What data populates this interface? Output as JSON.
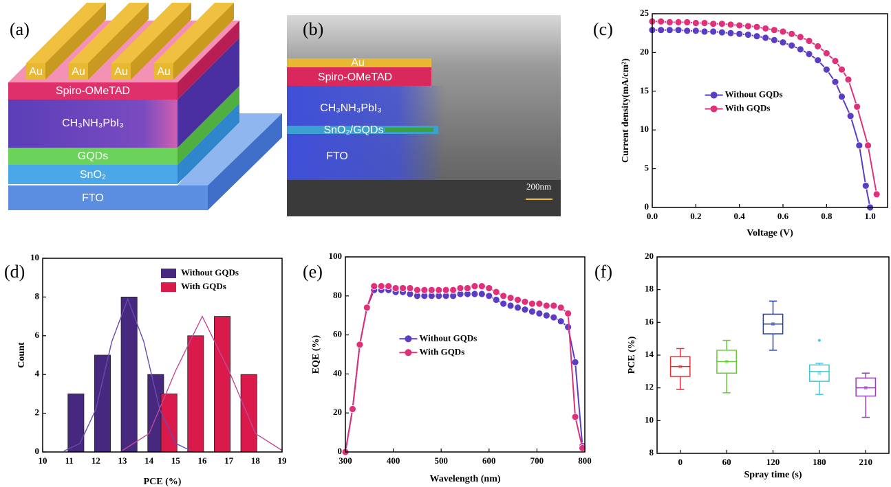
{
  "panel_a": {
    "label": "(a)",
    "electrodes": [
      "Au",
      "Au",
      "Au",
      "Au"
    ],
    "layers": [
      "Spiro-OMeTAD",
      "CH₃NH₃PbI₃",
      "GQDs",
      "SnO₂",
      "FTO"
    ]
  },
  "panel_b": {
    "label": "(b)",
    "layers": [
      "Au",
      "Spiro-OMeTAD",
      "CH₃NH₃PbI₃",
      "SnO₂/GQDs",
      "FTO"
    ],
    "scale_bar": "200nm"
  },
  "chart_data": [
    {
      "type": "line",
      "panel_label": "(c)",
      "xlabel": "Voltage (V)",
      "ylabel": "Current density(mA/cm²)",
      "xlim": [
        0,
        1.08
      ],
      "xticks": [
        {
          "value": 0,
          "label": "0.0"
        },
        0.2,
        0.4,
        0.6,
        0.8,
        {
          "value": 1,
          "label": "1.0"
        }
      ],
      "ylim": [
        0,
        25
      ],
      "yticks": [
        0,
        5,
        10,
        15,
        20,
        25
      ],
      "legend": "center",
      "series": [
        {
          "name": "Without GQDs",
          "color": "#5b3cc4",
          "x": [
            0,
            0.04,
            0.08,
            0.12,
            0.16,
            0.2,
            0.24,
            0.28,
            0.32,
            0.36,
            0.4,
            0.44,
            0.48,
            0.52,
            0.56,
            0.6,
            0.64,
            0.68,
            0.72,
            0.76,
            0.8,
            0.84,
            0.87,
            0.91,
            0.95,
            0.98,
            1.0
          ],
          "values": [
            22.9,
            22.9,
            22.9,
            22.9,
            22.8,
            22.8,
            22.7,
            22.7,
            22.6,
            22.5,
            22.4,
            22.3,
            22.1,
            21.9,
            21.6,
            21.3,
            20.9,
            20.4,
            19.8,
            19.0,
            17.8,
            16.2,
            14.3,
            11.8,
            8.0,
            2.8,
            0
          ]
        },
        {
          "name": "With GQDs",
          "color": "#e0307a",
          "x": [
            0,
            0.04,
            0.08,
            0.12,
            0.16,
            0.2,
            0.24,
            0.28,
            0.32,
            0.36,
            0.4,
            0.44,
            0.48,
            0.52,
            0.56,
            0.6,
            0.64,
            0.68,
            0.72,
            0.76,
            0.8,
            0.84,
            0.87,
            0.9,
            0.94,
            0.99,
            1.03
          ],
          "values": [
            24.0,
            24.0,
            23.9,
            23.9,
            23.9,
            23.8,
            23.8,
            23.7,
            23.7,
            23.6,
            23.5,
            23.4,
            23.3,
            23.1,
            22.9,
            22.7,
            22.4,
            22.0,
            21.5,
            20.8,
            19.9,
            18.9,
            17.8,
            16.5,
            13.0,
            8.0,
            1.7
          ]
        }
      ]
    },
    {
      "type": "bar",
      "panel_label": "(d)",
      "xlabel": "PCE (%)",
      "ylabel": "Count",
      "xlim": [
        10,
        19
      ],
      "xticks": [
        10,
        11,
        12,
        13,
        14,
        15,
        16,
        17,
        18,
        19
      ],
      "ylim": [
        0,
        10
      ],
      "yticks": [
        0,
        2,
        4,
        6,
        8,
        10
      ],
      "legend": "top-right",
      "series": [
        {
          "name": "Without GQDs",
          "color": "#46287f",
          "x": [
            11.25,
            12.25,
            13.25,
            14.25
          ],
          "values": [
            3,
            5,
            8,
            4
          ]
        },
        {
          "name": "With GQDs",
          "color": "#d91a4a",
          "x": [
            14.75,
            15.75,
            16.75,
            17.75
          ],
          "values": [
            3,
            6,
            7,
            4
          ]
        }
      ],
      "fits": [
        {
          "color": "#6a4ab0",
          "x": [
            10.8,
            11.4,
            12,
            12.6,
            13.2,
            13.8,
            14.4,
            15,
            15.6
          ],
          "values": [
            0.05,
            0.44,
            2.2,
            5.7,
            7.9,
            5.7,
            2.2,
            0.44,
            0.05
          ]
        },
        {
          "color": "#c04a9a",
          "x": [
            13,
            14,
            15,
            16,
            17,
            18,
            19
          ],
          "values": [
            0.08,
            0.95,
            4.2,
            7,
            4.2,
            0.95,
            0.08
          ]
        }
      ]
    },
    {
      "type": "line",
      "panel_label": "(e)",
      "xlabel": "Wavelength (nm)",
      "ylabel": "EQE (%)",
      "xlim": [
        300,
        800
      ],
      "xticks": [
        300,
        400,
        500,
        600,
        700,
        800
      ],
      "ylim": [
        0,
        100
      ],
      "yticks": [
        0,
        20,
        40,
        60,
        80,
        100
      ],
      "legend": "center",
      "series": [
        {
          "name": "Without GQDs",
          "color": "#5b3cc4",
          "x": [
            300,
            315,
            330,
            345,
            360,
            375,
            390,
            405,
            420,
            435,
            450,
            465,
            480,
            495,
            510,
            525,
            540,
            555,
            570,
            585,
            600,
            615,
            630,
            645,
            660,
            675,
            690,
            705,
            720,
            735,
            750,
            765,
            780,
            795
          ],
          "values": [
            0,
            22,
            55,
            74,
            83,
            83,
            83,
            82,
            82,
            81,
            80,
            80,
            80,
            80,
            80,
            80,
            81,
            81,
            81,
            81,
            80,
            78,
            76,
            75,
            74,
            73,
            72,
            71,
            70,
            69,
            67,
            64,
            46,
            3
          ]
        },
        {
          "name": "With GQDs",
          "color": "#e0307a",
          "x": [
            300,
            315,
            330,
            345,
            360,
            375,
            390,
            405,
            420,
            435,
            450,
            465,
            480,
            495,
            510,
            525,
            540,
            555,
            570,
            585,
            600,
            615,
            630,
            645,
            660,
            675,
            690,
            705,
            720,
            735,
            750,
            765,
            780,
            795
          ],
          "values": [
            0,
            22,
            55,
            74,
            85,
            85,
            85,
            84,
            84,
            84,
            83,
            83,
            83,
            83,
            83,
            83,
            84,
            84,
            85,
            85,
            84,
            82,
            80,
            79,
            78,
            77,
            76,
            76,
            75,
            75,
            74,
            71,
            18,
            2
          ]
        }
      ]
    },
    {
      "type": "box",
      "panel_label": "(f)",
      "xlabel": "Spray time (s)",
      "ylabel": "PCE (%)",
      "categories": [
        "0",
        "60",
        "120",
        "180",
        "210"
      ],
      "ylim": [
        8,
        20
      ],
      "yticks": [
        8,
        10,
        12,
        14,
        16,
        18,
        20
      ],
      "boxes": [
        {
          "color": "#e03030",
          "min": 11.9,
          "q1": 12.7,
          "median": 13.3,
          "q3": 13.9,
          "max": 14.4,
          "mean": 13.3
        },
        {
          "color": "#66cc33",
          "min": 11.7,
          "q1": 12.9,
          "median": 13.6,
          "q3": 14.3,
          "max": 14.9,
          "mean": 13.6
        },
        {
          "color": "#2040c0",
          "min": 14.3,
          "q1": 15.3,
          "median": 15.9,
          "q3": 16.5,
          "max": 17.3,
          "mean": 15.9
        },
        {
          "color": "#40c8d8",
          "min": 11.6,
          "q1": 12.4,
          "median": 13.0,
          "q3": 13.4,
          "max": 13.5,
          "mean": 12.9,
          "outliers": [
            14.9
          ]
        },
        {
          "color": "#9040b0",
          "min": 10.2,
          "q1": 11.5,
          "median": 12.0,
          "q3": 12.6,
          "max": 12.9,
          "mean": 12.0
        }
      ]
    }
  ]
}
